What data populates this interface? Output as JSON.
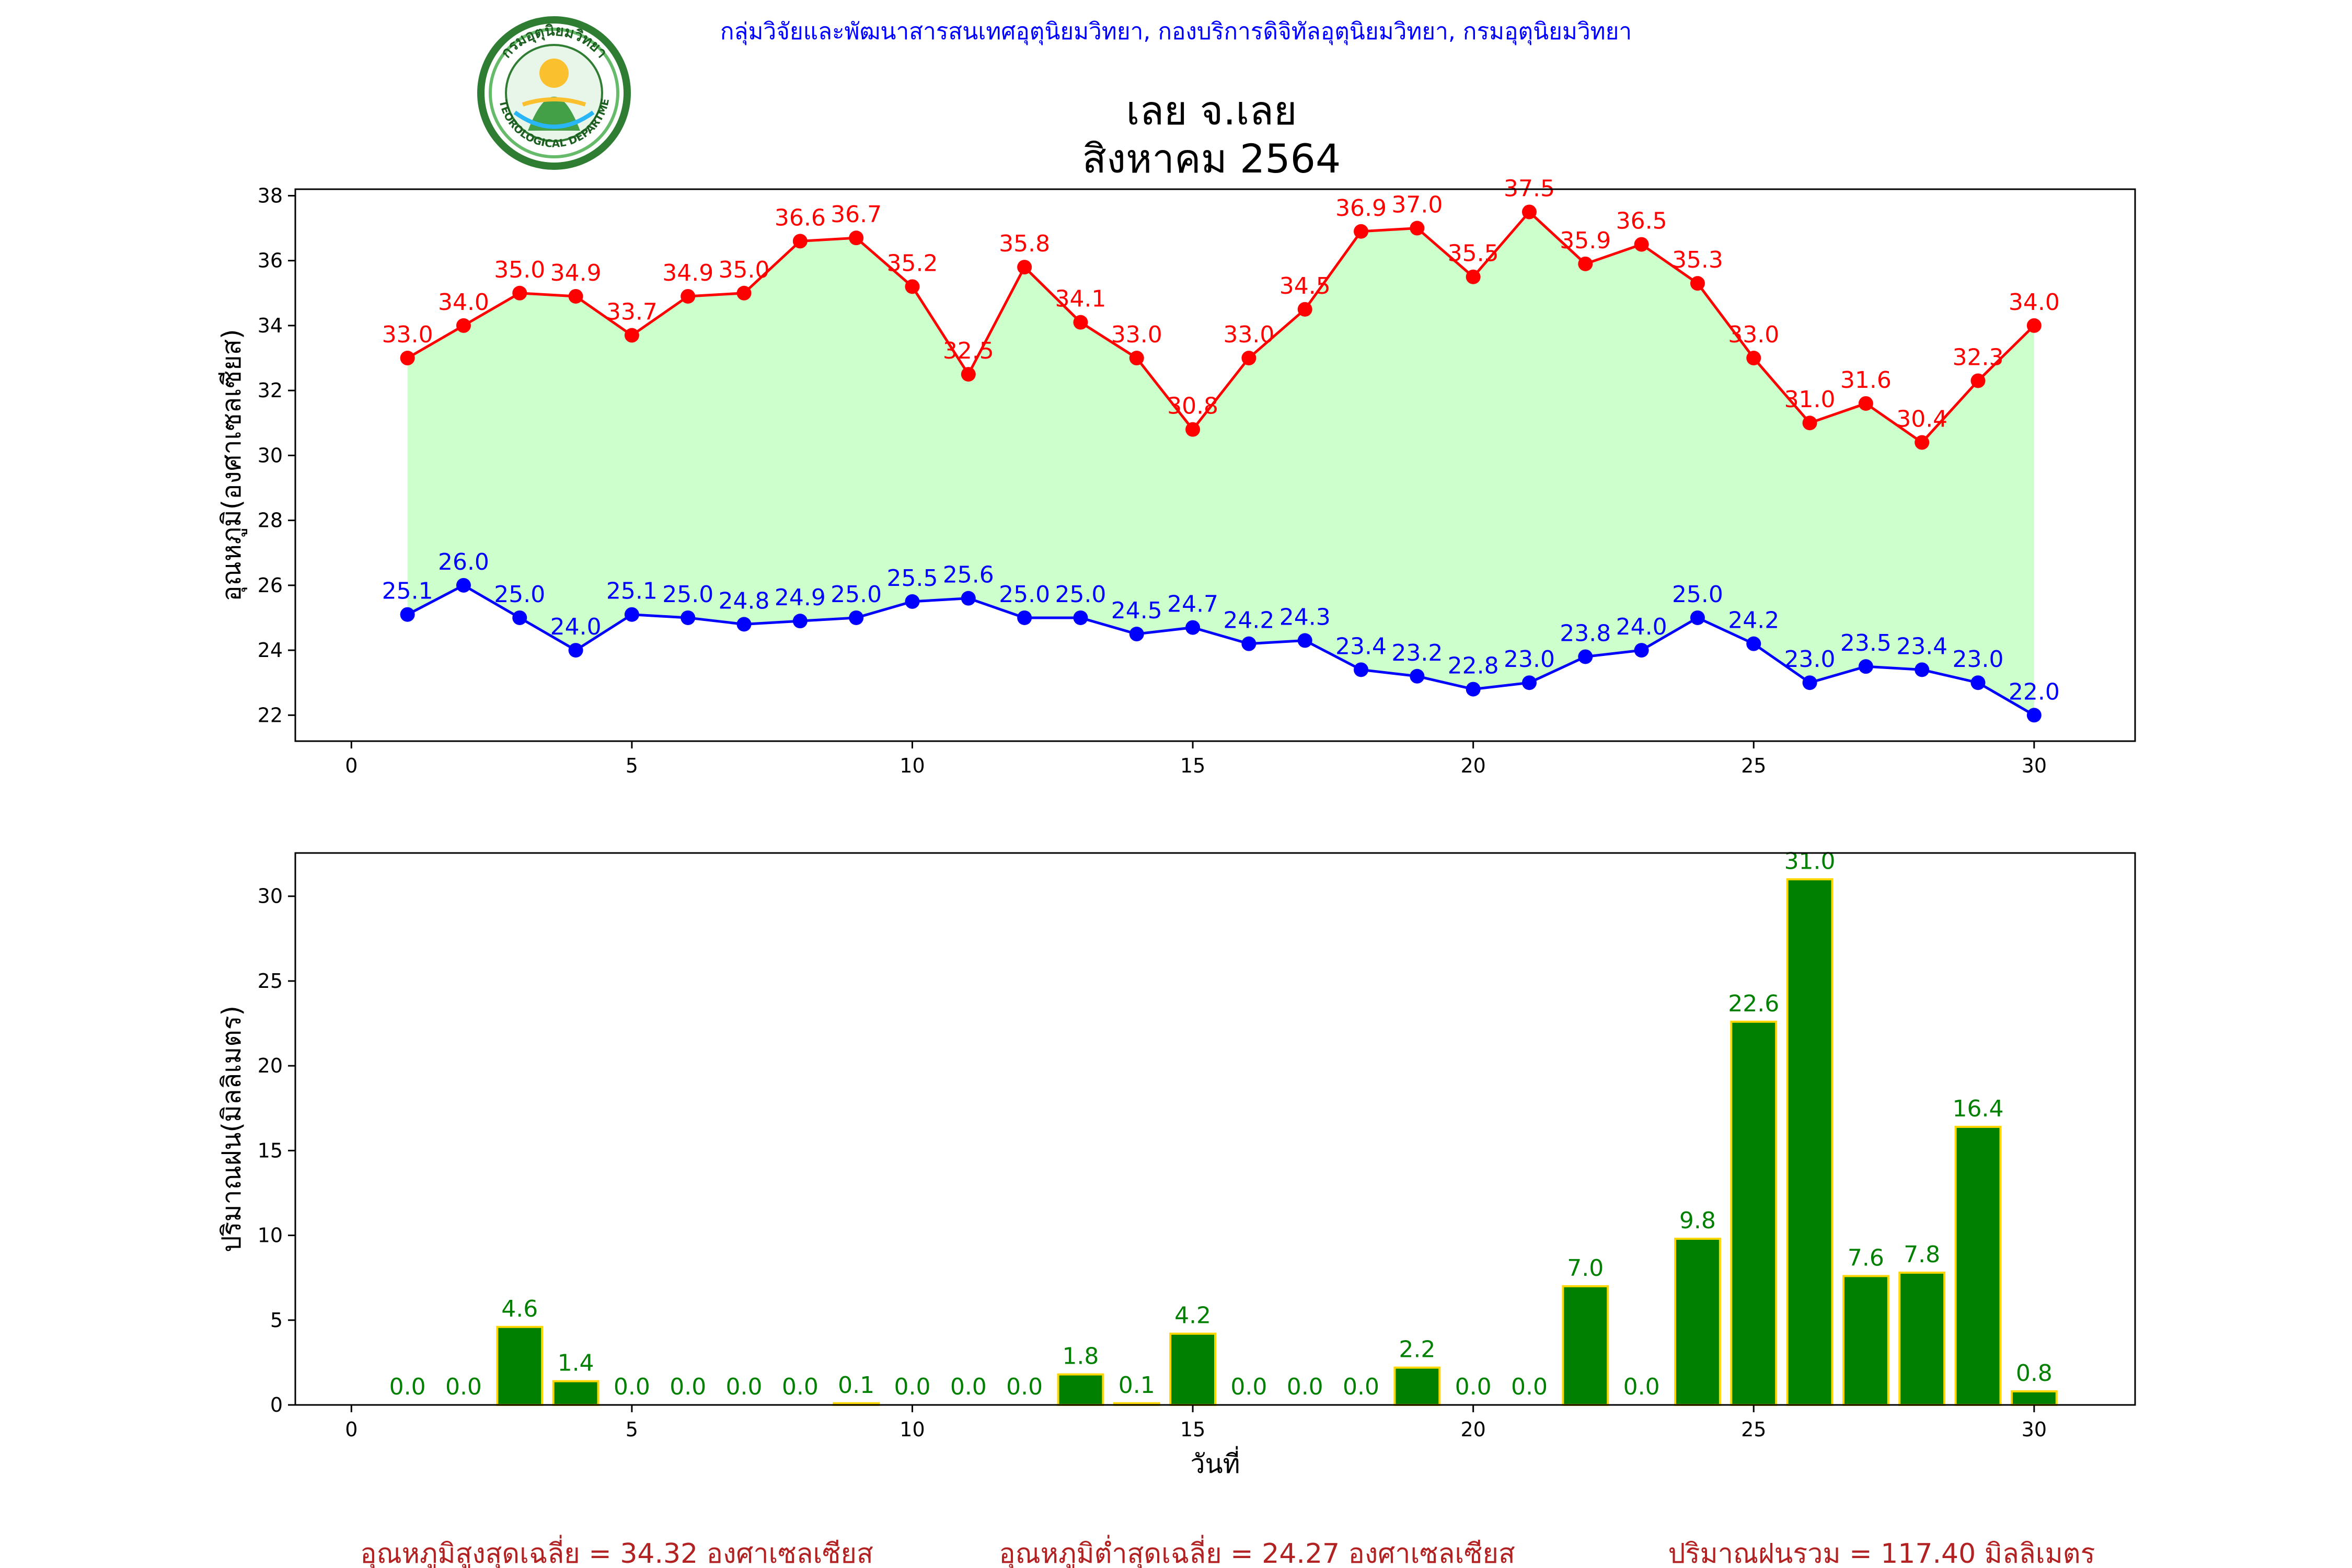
{
  "header": {
    "department_line": "กลุ่มวิจัยและพัฒนาสารสนเทศอุตุนิยมวิทยา, กองบริการดิจิทัลอุตุนิยมวิทยา, กรมอุตุนิยมวิทยา",
    "logo_text": "กรมอุตุนิยมวิทยา METEOROLOGICAL DEPARTMENT"
  },
  "title": {
    "line1": "เลย จ.เลย",
    "line2": "สิงหาคม 2564"
  },
  "colors": {
    "max_temp": "#ff0000",
    "min_temp": "#0000ff",
    "temp_fill": "#ccffcc",
    "rain_bar": "#008000",
    "rain_bar_edge": "#ffd700",
    "rain_label": "#008000",
    "header_text": "#0000ff",
    "summary_text": "#b22222"
  },
  "chart_data": [
    {
      "type": "line",
      "ylabel": "อุณหภูมิ(องศาเซลเซียส)",
      "xlabel": "",
      "xlim": [
        -1,
        31.8
      ],
      "ylim": [
        21.2,
        38.2
      ],
      "xticks": [
        0,
        5,
        10,
        15,
        20,
        25,
        30
      ],
      "yticks": [
        22,
        24,
        26,
        28,
        30,
        32,
        34,
        36,
        38
      ],
      "x": [
        1,
        2,
        3,
        4,
        5,
        6,
        7,
        8,
        9,
        10,
        11,
        12,
        13,
        14,
        15,
        16,
        17,
        18,
        19,
        20,
        21,
        22,
        23,
        24,
        25,
        26,
        27,
        28,
        29,
        30
      ],
      "series": [
        {
          "key": "max",
          "values": [
            33.0,
            34.0,
            35.0,
            34.9,
            33.7,
            34.9,
            35.0,
            36.6,
            36.7,
            35.2,
            32.5,
            35.8,
            34.1,
            33.0,
            30.8,
            33.0,
            34.5,
            36.9,
            37.0,
            35.5,
            37.5,
            35.9,
            36.5,
            35.3,
            33.0,
            31.0,
            31.6,
            30.4,
            32.3,
            34.0
          ]
        },
        {
          "key": "min",
          "values": [
            25.1,
            26.0,
            25.0,
            24.0,
            25.1,
            25.0,
            24.8,
            24.9,
            25.0,
            25.5,
            25.6,
            25.0,
            25.0,
            24.5,
            24.7,
            24.2,
            24.3,
            23.4,
            23.2,
            22.8,
            23.0,
            23.8,
            24.0,
            25.0,
            24.2,
            23.0,
            23.5,
            23.4,
            23.0,
            22.0
          ]
        }
      ],
      "fill_between": true,
      "grid": false
    },
    {
      "type": "bar",
      "ylabel": "ปริมาณฝน(มิลลิเมตร)",
      "xlabel": "วันที่",
      "xlim": [
        -1,
        31.8
      ],
      "ylim": [
        0,
        32.55
      ],
      "xticks": [
        0,
        5,
        10,
        15,
        20,
        25,
        30
      ],
      "yticks": [
        0,
        5,
        10,
        15,
        20,
        25,
        30
      ],
      "x": [
        1,
        2,
        3,
        4,
        5,
        6,
        7,
        8,
        9,
        10,
        11,
        12,
        13,
        14,
        15,
        16,
        17,
        18,
        19,
        20,
        21,
        22,
        23,
        24,
        25,
        26,
        27,
        28,
        29,
        30
      ],
      "values": [
        0.0,
        0.0,
        4.6,
        1.4,
        0.0,
        0.0,
        0.0,
        0.0,
        0.1,
        0.0,
        0.0,
        0.0,
        1.8,
        0.1,
        4.2,
        0.0,
        0.0,
        0.0,
        2.2,
        0.0,
        0.0,
        7.0,
        0.0,
        9.8,
        22.6,
        31.0,
        7.6,
        7.8,
        16.4,
        0.8
      ],
      "grid": false
    }
  ],
  "summary": {
    "avg_max": "อุณหภูมิสูงสุดเฉลี่ย = 34.32 องศาเซลเซียส",
    "avg_min": "อุณหภูมิต่ำสุดเฉลี่ย = 24.27 องศาเซลเซียส",
    "total_rain": "ปริมาณฝนรวม = 117.40 มิลลิเมตร"
  }
}
